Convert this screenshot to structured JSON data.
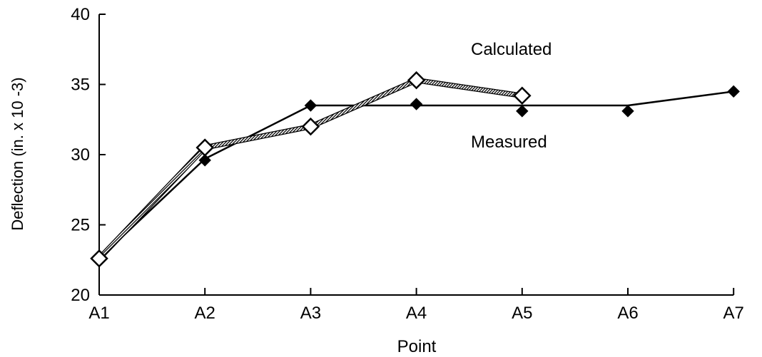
{
  "chart_data": {
    "type": "line",
    "xlabel": "Point",
    "ylabel": "Deflection (in. x 10 -3)",
    "categories": [
      "A1",
      "A2",
      "A3",
      "A4",
      "A5",
      "A6",
      "A7"
    ],
    "ylim": [
      20,
      40
    ],
    "yticks": [
      20,
      25,
      30,
      35,
      40
    ],
    "grid": false,
    "series": [
      {
        "name": "Calculated",
        "style": "solid",
        "marker": "filled-diamond",
        "color": "#000000",
        "values": [
          22.6,
          29.7,
          33.5,
          33.5,
          33.5,
          33.5,
          34.5
        ]
      },
      {
        "name": "Measured",
        "style": "hatched",
        "marker": "open-diamond",
        "color": "#000000",
        "values": [
          22.6,
          30.5,
          32.0,
          35.3,
          34.2,
          null,
          null
        ]
      }
    ],
    "point_markers": {
      "Calculated": [
        null,
        29.6,
        33.5,
        33.6,
        33.1,
        33.1,
        34.5
      ]
    }
  }
}
